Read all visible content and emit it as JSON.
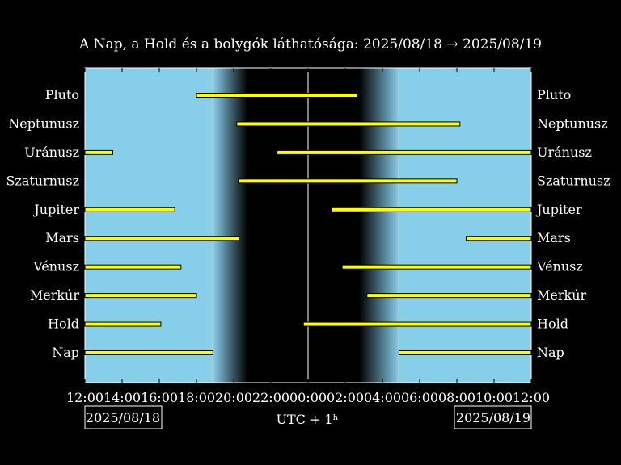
{
  "chart_data": {
    "type": "timeline",
    "title": "A Nap, a Hold és a bolygók láthatósága: 2025/08/18 → 2025/08/19",
    "xlabel": "UTC + 1ʰ",
    "date_start": "2025/08/18",
    "date_end": "2025/08/19",
    "x_range": [
      "2025-08-18 12:00",
      "2025-08-19 12:00"
    ],
    "x_ticks": [
      "12:00",
      "14:00",
      "16:00",
      "18:00",
      "20:00",
      "22:00",
      "00:00",
      "02:00",
      "04:00",
      "06:00",
      "08:00",
      "10:00",
      "12:00"
    ],
    "sunset": "2025-08-18 18:53",
    "sunrise": "2025-08-19 04:53",
    "dark_start": "2025-08-18 20:45",
    "dark_end": "2025-08-19 02:45",
    "midnight_line": "2025-08-19 00:00",
    "colors": {
      "day": "#87ceeb",
      "night": "#000000",
      "bar": "#ffff00",
      "bar_outline": "#000000"
    },
    "bodies": [
      {
        "name": "Pluto",
        "intervals": [
          [
            "2025-08-18 18:00",
            "2025-08-19 02:40"
          ]
        ]
      },
      {
        "name": "Neptunusz",
        "intervals": [
          [
            "2025-08-18 20:10",
            "2025-08-19 08:10"
          ]
        ]
      },
      {
        "name": "Uránusz",
        "intervals": [
          [
            "2025-08-18 12:00",
            "2025-08-18 13:30"
          ],
          [
            "2025-08-18 22:20",
            "2025-08-19 12:00"
          ]
        ]
      },
      {
        "name": "Szaturnusz",
        "intervals": [
          [
            "2025-08-18 20:15",
            "2025-08-19 08:00"
          ]
        ]
      },
      {
        "name": "Jupiter",
        "intervals": [
          [
            "2025-08-18 12:00",
            "2025-08-18 16:50"
          ],
          [
            "2025-08-19 01:15",
            "2025-08-19 12:00"
          ]
        ]
      },
      {
        "name": "Mars",
        "intervals": [
          [
            "2025-08-18 12:00",
            "2025-08-18 20:20"
          ],
          [
            "2025-08-19 08:30",
            "2025-08-19 12:00"
          ]
        ]
      },
      {
        "name": "Vénusz",
        "intervals": [
          [
            "2025-08-18 12:00",
            "2025-08-18 17:10"
          ],
          [
            "2025-08-19 01:50",
            "2025-08-19 12:00"
          ]
        ]
      },
      {
        "name": "Merkúr",
        "intervals": [
          [
            "2025-08-18 12:00",
            "2025-08-18 18:00"
          ],
          [
            "2025-08-19 03:10",
            "2025-08-19 12:00"
          ]
        ]
      },
      {
        "name": "Hold",
        "intervals": [
          [
            "2025-08-18 12:00",
            "2025-08-18 16:05"
          ],
          [
            "2025-08-18 23:45",
            "2025-08-19 12:00"
          ]
        ]
      },
      {
        "name": "Nap",
        "intervals": [
          [
            "2025-08-18 12:00",
            "2025-08-18 18:53"
          ],
          [
            "2025-08-19 04:53",
            "2025-08-19 12:00"
          ]
        ]
      }
    ]
  }
}
